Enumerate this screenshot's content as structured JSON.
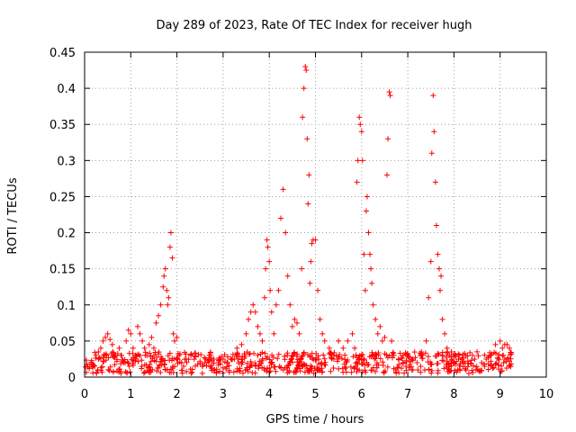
{
  "chart_data": {
    "type": "scatter",
    "title": "Day 289 of 2023, Rate Of TEC Index for receiver hugh",
    "xlabel": "GPS time / hours",
    "ylabel": "ROTI / TECUs",
    "xlim": [
      0,
      10
    ],
    "ylim": [
      0,
      0.45
    ],
    "x_ticks": [
      "0",
      "1",
      "2",
      "3",
      "4",
      "5",
      "6",
      "7",
      "8",
      "9",
      "10"
    ],
    "y_ticks": [
      "0",
      "0.05",
      "0.1",
      "0.15",
      "0.2",
      "0.25",
      "0.3",
      "0.35",
      "0.4",
      "0.45"
    ],
    "x_tick_values": [
      0,
      1,
      2,
      3,
      4,
      5,
      6,
      7,
      8,
      9,
      10
    ],
    "y_tick_values": [
      0,
      0.05,
      0.1,
      0.15,
      0.2,
      0.25,
      0.3,
      0.35,
      0.4,
      0.45
    ],
    "grid": true,
    "marker": "+",
    "color": "#ff0000",
    "series": [
      {
        "points": [
          [
            0.02,
            0.014
          ],
          [
            0.05,
            0.018
          ],
          [
            0.1,
            0.012
          ],
          [
            0.15,
            0.02
          ],
          [
            0.2,
            0.016
          ],
          [
            0.25,
            0.03
          ],
          [
            0.3,
            0.025
          ],
          [
            0.35,
            0.04
          ],
          [
            0.4,
            0.05
          ],
          [
            0.45,
            0.055
          ],
          [
            0.5,
            0.06
          ],
          [
            0.55,
            0.052
          ],
          [
            0.6,
            0.045
          ],
          [
            0.65,
            0.03
          ],
          [
            0.7,
            0.022
          ],
          [
            0.75,
            0.04
          ],
          [
            0.8,
            0.03
          ],
          [
            0.85,
            0.02
          ],
          [
            0.9,
            0.05
          ],
          [
            0.95,
            0.065
          ],
          [
            1.0,
            0.06
          ],
          [
            1.05,
            0.04
          ],
          [
            1.1,
            0.03
          ],
          [
            1.15,
            0.07
          ],
          [
            1.2,
            0.06
          ],
          [
            1.25,
            0.05
          ],
          [
            1.3,
            0.04
          ],
          [
            1.35,
            0.03
          ],
          [
            1.4,
            0.045
          ],
          [
            1.45,
            0.055
          ],
          [
            1.5,
            0.04
          ],
          [
            1.55,
            0.075
          ],
          [
            1.6,
            0.085
          ],
          [
            1.65,
            0.1
          ],
          [
            1.7,
            0.125
          ],
          [
            1.72,
            0.14
          ],
          [
            1.75,
            0.15
          ],
          [
            1.78,
            0.12
          ],
          [
            1.8,
            0.1
          ],
          [
            1.82,
            0.11
          ],
          [
            1.85,
            0.18
          ],
          [
            1.87,
            0.2
          ],
          [
            1.9,
            0.165
          ],
          [
            1.92,
            0.06
          ],
          [
            1.95,
            0.05
          ],
          [
            2.0,
            0.055
          ],
          [
            2.05,
            0.03
          ],
          [
            2.1,
            0.02
          ],
          [
            2.2,
            0.025
          ],
          [
            2.3,
            0.03
          ],
          [
            2.4,
            0.028
          ],
          [
            2.5,
            0.022
          ],
          [
            2.6,
            0.02
          ],
          [
            2.7,
            0.03
          ],
          [
            2.8,
            0.025
          ],
          [
            2.9,
            0.02
          ],
          [
            3.0,
            0.025
          ],
          [
            3.1,
            0.02
          ],
          [
            3.2,
            0.025
          ],
          [
            3.3,
            0.04
          ],
          [
            3.4,
            0.045
          ],
          [
            3.5,
            0.06
          ],
          [
            3.55,
            0.08
          ],
          [
            3.6,
            0.09
          ],
          [
            3.65,
            0.1
          ],
          [
            3.7,
            0.09
          ],
          [
            3.75,
            0.07
          ],
          [
            3.8,
            0.06
          ],
          [
            3.85,
            0.05
          ],
          [
            3.9,
            0.11
          ],
          [
            3.92,
            0.15
          ],
          [
            3.95,
            0.19
          ],
          [
            3.97,
            0.18
          ],
          [
            4.0,
            0.16
          ],
          [
            4.02,
            0.12
          ],
          [
            4.05,
            0.09
          ],
          [
            4.1,
            0.06
          ],
          [
            4.15,
            0.1
          ],
          [
            4.2,
            0.12
          ],
          [
            4.25,
            0.22
          ],
          [
            4.3,
            0.26
          ],
          [
            4.35,
            0.2
          ],
          [
            4.4,
            0.14
          ],
          [
            4.45,
            0.1
          ],
          [
            4.5,
            0.07
          ],
          [
            4.55,
            0.08
          ],
          [
            4.6,
            0.075
          ],
          [
            4.65,
            0.06
          ],
          [
            4.7,
            0.15
          ],
          [
            4.72,
            0.36
          ],
          [
            4.75,
            0.4
          ],
          [
            4.78,
            0.43
          ],
          [
            4.8,
            0.425
          ],
          [
            4.82,
            0.33
          ],
          [
            4.84,
            0.24
          ],
          [
            4.86,
            0.28
          ],
          [
            4.88,
            0.13
          ],
          [
            4.9,
            0.16
          ],
          [
            4.92,
            0.185
          ],
          [
            4.95,
            0.19
          ],
          [
            5.0,
            0.19
          ],
          [
            5.05,
            0.12
          ],
          [
            5.1,
            0.08
          ],
          [
            5.15,
            0.06
          ],
          [
            5.2,
            0.05
          ],
          [
            5.3,
            0.04
          ],
          [
            5.4,
            0.03
          ],
          [
            5.5,
            0.05
          ],
          [
            5.6,
            0.04
          ],
          [
            5.7,
            0.05
          ],
          [
            5.8,
            0.06
          ],
          [
            5.85,
            0.04
          ],
          [
            5.9,
            0.27
          ],
          [
            5.92,
            0.3
          ],
          [
            5.95,
            0.36
          ],
          [
            5.97,
            0.35
          ],
          [
            6.0,
            0.34
          ],
          [
            6.02,
            0.3
          ],
          [
            6.05,
            0.17
          ],
          [
            6.08,
            0.12
          ],
          [
            6.1,
            0.23
          ],
          [
            6.12,
            0.25
          ],
          [
            6.15,
            0.2
          ],
          [
            6.18,
            0.17
          ],
          [
            6.2,
            0.15
          ],
          [
            6.22,
            0.13
          ],
          [
            6.25,
            0.1
          ],
          [
            6.3,
            0.08
          ],
          [
            6.35,
            0.06
          ],
          [
            6.4,
            0.07
          ],
          [
            6.45,
            0.05
          ],
          [
            6.5,
            0.055
          ],
          [
            6.55,
            0.28
          ],
          [
            6.57,
            0.33
          ],
          [
            6.6,
            0.395
          ],
          [
            6.62,
            0.39
          ],
          [
            6.65,
            0.05
          ],
          [
            6.7,
            0.03
          ],
          [
            6.8,
            0.025
          ],
          [
            6.9,
            0.02
          ],
          [
            7.0,
            0.03
          ],
          [
            7.1,
            0.025
          ],
          [
            7.2,
            0.02
          ],
          [
            7.3,
            0.03
          ],
          [
            7.4,
            0.05
          ],
          [
            7.45,
            0.11
          ],
          [
            7.5,
            0.16
          ],
          [
            7.52,
            0.31
          ],
          [
            7.55,
            0.39
          ],
          [
            7.57,
            0.34
          ],
          [
            7.6,
            0.27
          ],
          [
            7.62,
            0.21
          ],
          [
            7.65,
            0.17
          ],
          [
            7.68,
            0.15
          ],
          [
            7.7,
            0.12
          ],
          [
            7.72,
            0.14
          ],
          [
            7.75,
            0.08
          ],
          [
            7.8,
            0.06
          ],
          [
            7.85,
            0.04
          ],
          [
            7.9,
            0.03
          ],
          [
            8.0,
            0.02
          ],
          [
            8.1,
            0.025
          ],
          [
            8.2,
            0.02
          ],
          [
            8.3,
            0.022
          ],
          [
            8.4,
            0.03
          ],
          [
            8.5,
            0.035
          ],
          [
            8.6,
            0.02
          ],
          [
            8.7,
            0.025
          ],
          [
            8.8,
            0.03
          ],
          [
            8.9,
            0.045
          ],
          [
            9.0,
            0.05
          ],
          [
            9.05,
            0.04
          ],
          [
            9.1,
            0.045
          ],
          [
            9.15,
            0.045
          ],
          [
            9.2,
            0.04
          ]
        ]
      }
    ],
    "baseline_band": {
      "x_start": 0,
      "x_end": 9.25,
      "y_min": 0.005,
      "y_max": 0.035
    }
  }
}
